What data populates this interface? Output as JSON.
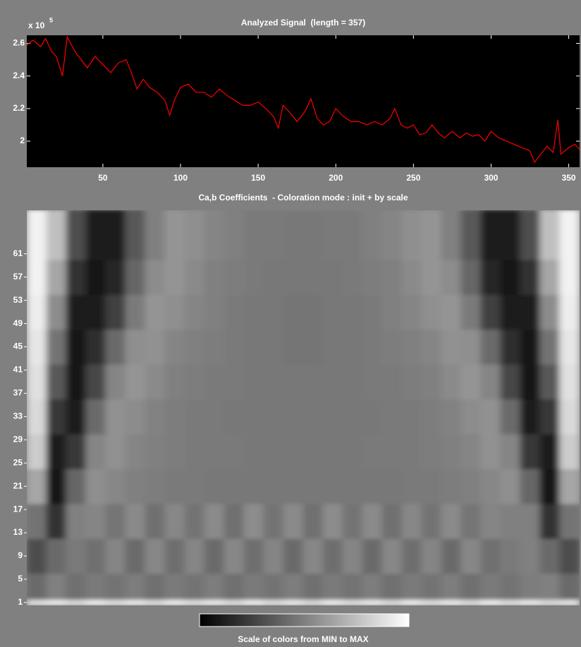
{
  "chart_data": [
    {
      "type": "line",
      "title": "Analyzed Signal  (length = 357)",
      "y_multiplier": {
        "base": "x 10",
        "exponent": "5"
      },
      "x": [
        1,
        5,
        10,
        13,
        17,
        20,
        24,
        27,
        32,
        36,
        40,
        45,
        50,
        55,
        60,
        65,
        68,
        72,
        76,
        80,
        85,
        90,
        93,
        96,
        100,
        105,
        110,
        115,
        120,
        125,
        130,
        135,
        140,
        145,
        150,
        155,
        160,
        163,
        166,
        170,
        175,
        180,
        184,
        188,
        192,
        196,
        200,
        205,
        210,
        215,
        220,
        225,
        230,
        235,
        238,
        242,
        246,
        250,
        254,
        258,
        262,
        266,
        270,
        275,
        280,
        284,
        288,
        292,
        296,
        300,
        305,
        310,
        315,
        320,
        325,
        328,
        332,
        336,
        340,
        343,
        345,
        350,
        354,
        357
      ],
      "values": [
        2.59,
        2.62,
        2.58,
        2.63,
        2.55,
        2.52,
        2.4,
        2.64,
        2.55,
        2.5,
        2.45,
        2.52,
        2.47,
        2.42,
        2.48,
        2.5,
        2.43,
        2.32,
        2.38,
        2.33,
        2.3,
        2.25,
        2.16,
        2.25,
        2.33,
        2.35,
        2.3,
        2.3,
        2.27,
        2.32,
        2.28,
        2.25,
        2.22,
        2.22,
        2.24,
        2.2,
        2.15,
        2.08,
        2.22,
        2.18,
        2.12,
        2.18,
        2.26,
        2.14,
        2.1,
        2.12,
        2.2,
        2.15,
        2.12,
        2.12,
        2.1,
        2.12,
        2.1,
        2.14,
        2.2,
        2.1,
        2.08,
        2.1,
        2.04,
        2.05,
        2.1,
        2.05,
        2.02,
        2.06,
        2.02,
        2.05,
        2.03,
        2.04,
        2.0,
        2.06,
        2.02,
        2.0,
        1.98,
        1.96,
        1.94,
        1.87,
        1.92,
        1.97,
        1.93,
        2.13,
        1.92,
        1.96,
        1.98,
        1.95
      ],
      "color": "#ff0000",
      "background": "#000000",
      "xlim": [
        1,
        357
      ],
      "xticks": [
        50,
        100,
        150,
        200,
        250,
        300,
        350
      ],
      "ylim": [
        1.84,
        2.65
      ],
      "yticks": [
        2,
        2.2,
        2.4,
        2.6
      ]
    },
    {
      "type": "heatmap",
      "title": "Ca,b Coefficients  - Coloration mode : init + by scale",
      "colorbar_label": "Scale of colors from MIN to MAX",
      "colormap": [
        "#000000",
        "#ffffff"
      ],
      "zlim": [
        0,
        1
      ],
      "xlim": [
        0,
        357
      ],
      "x_edges": [
        0,
        12.75,
        25.5,
        38.25,
        51,
        63.75,
        76.5,
        89.25,
        102,
        114.75,
        127.5,
        140.25,
        153,
        165.75,
        178.5,
        191.25,
        204,
        216.75,
        229.5,
        242.25,
        255,
        267.75,
        280.5,
        293.25,
        306,
        318.75,
        331.5,
        344.25,
        357
      ],
      "ylim": [
        0.5,
        68.5
      ],
      "y_edges": [
        0.5,
        1.5,
        6,
        12,
        18,
        24,
        30,
        36,
        42,
        48,
        54,
        60,
        68.5
      ],
      "yticks": [
        1,
        5,
        9,
        13,
        17,
        21,
        25,
        29,
        33,
        37,
        41,
        45,
        49,
        53,
        57,
        61
      ],
      "z": [
        [
          0.88,
          0.92,
          0.86,
          0.93,
          0.87,
          0.92,
          0.86,
          0.93,
          0.87,
          0.92,
          0.86,
          0.93,
          0.87,
          0.92,
          0.86,
          0.93,
          0.87,
          0.92,
          0.86,
          0.93,
          0.87,
          0.92,
          0.86,
          0.93,
          0.87,
          0.92,
          0.86,
          0.9
        ],
        [
          0.42,
          0.5,
          0.44,
          0.48,
          0.45,
          0.49,
          0.44,
          0.48,
          0.45,
          0.49,
          0.44,
          0.48,
          0.45,
          0.49,
          0.44,
          0.48,
          0.45,
          0.49,
          0.44,
          0.48,
          0.45,
          0.49,
          0.44,
          0.48,
          0.45,
          0.49,
          0.5,
          0.42
        ],
        [
          0.3,
          0.42,
          0.48,
          0.44,
          0.52,
          0.42,
          0.53,
          0.43,
          0.52,
          0.42,
          0.53,
          0.43,
          0.52,
          0.42,
          0.53,
          0.43,
          0.52,
          0.42,
          0.53,
          0.43,
          0.52,
          0.42,
          0.53,
          0.44,
          0.48,
          0.5,
          0.42,
          0.3
        ],
        [
          0.45,
          0.2,
          0.5,
          0.52,
          0.46,
          0.54,
          0.44,
          0.53,
          0.45,
          0.54,
          0.44,
          0.55,
          0.45,
          0.54,
          0.44,
          0.55,
          0.45,
          0.54,
          0.44,
          0.53,
          0.45,
          0.54,
          0.46,
          0.52,
          0.5,
          0.5,
          0.2,
          0.45
        ],
        [
          0.65,
          0.08,
          0.4,
          0.56,
          0.53,
          0.5,
          0.49,
          0.48,
          0.48,
          0.47,
          0.47,
          0.47,
          0.47,
          0.47,
          0.47,
          0.47,
          0.47,
          0.47,
          0.47,
          0.48,
          0.48,
          0.49,
          0.5,
          0.53,
          0.56,
          0.4,
          0.08,
          0.65
        ],
        [
          0.8,
          0.12,
          0.22,
          0.52,
          0.57,
          0.52,
          0.5,
          0.49,
          0.48,
          0.48,
          0.48,
          0.47,
          0.47,
          0.47,
          0.47,
          0.47,
          0.47,
          0.48,
          0.48,
          0.48,
          0.49,
          0.5,
          0.52,
          0.57,
          0.52,
          0.22,
          0.12,
          0.8
        ],
        [
          0.85,
          0.22,
          0.1,
          0.42,
          0.57,
          0.55,
          0.51,
          0.49,
          0.48,
          0.48,
          0.47,
          0.47,
          0.47,
          0.47,
          0.47,
          0.47,
          0.47,
          0.47,
          0.48,
          0.48,
          0.49,
          0.51,
          0.55,
          0.57,
          0.42,
          0.1,
          0.22,
          0.85
        ],
        [
          0.88,
          0.35,
          0.07,
          0.28,
          0.52,
          0.58,
          0.54,
          0.5,
          0.49,
          0.48,
          0.48,
          0.47,
          0.47,
          0.47,
          0.47,
          0.47,
          0.47,
          0.48,
          0.48,
          0.49,
          0.5,
          0.54,
          0.58,
          0.52,
          0.28,
          0.07,
          0.35,
          0.88
        ],
        [
          0.9,
          0.45,
          0.08,
          0.18,
          0.42,
          0.56,
          0.57,
          0.52,
          0.5,
          0.49,
          0.48,
          0.47,
          0.47,
          0.46,
          0.46,
          0.47,
          0.47,
          0.48,
          0.49,
          0.5,
          0.52,
          0.57,
          0.56,
          0.42,
          0.18,
          0.08,
          0.45,
          0.9
        ],
        [
          0.93,
          0.55,
          0.12,
          0.1,
          0.25,
          0.48,
          0.58,
          0.56,
          0.52,
          0.5,
          0.48,
          0.47,
          0.47,
          0.46,
          0.46,
          0.47,
          0.47,
          0.48,
          0.5,
          0.52,
          0.56,
          0.58,
          0.48,
          0.25,
          0.1,
          0.12,
          0.55,
          0.93
        ],
        [
          0.95,
          0.65,
          0.2,
          0.08,
          0.15,
          0.4,
          0.55,
          0.58,
          0.54,
          0.5,
          0.49,
          0.48,
          0.47,
          0.47,
          0.47,
          0.47,
          0.48,
          0.49,
          0.5,
          0.54,
          0.58,
          0.55,
          0.4,
          0.15,
          0.08,
          0.2,
          0.65,
          0.95
        ],
        [
          0.95,
          0.75,
          0.3,
          0.1,
          0.1,
          0.35,
          0.5,
          0.58,
          0.56,
          0.52,
          0.5,
          0.48,
          0.48,
          0.47,
          0.47,
          0.48,
          0.48,
          0.5,
          0.52,
          0.56,
          0.58,
          0.5,
          0.35,
          0.1,
          0.1,
          0.3,
          0.75,
          0.95
        ]
      ]
    }
  ]
}
